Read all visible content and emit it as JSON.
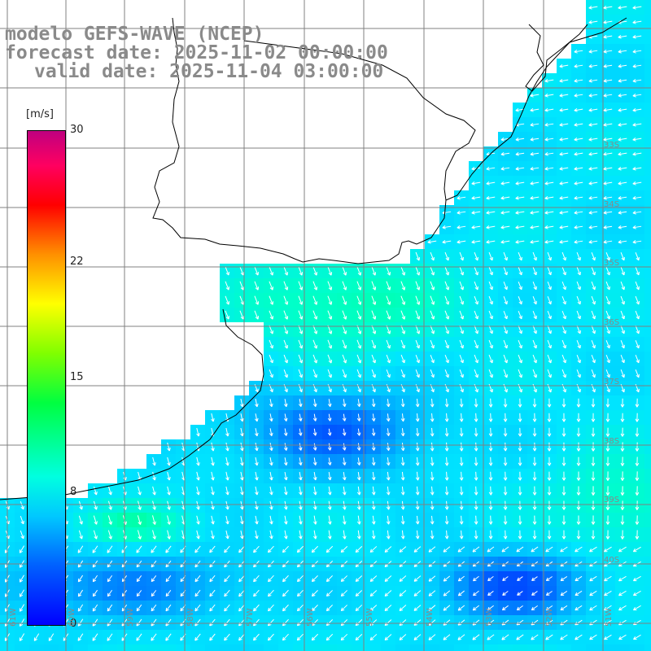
{
  "title": {
    "line1": "modelo GEFS-WAVE (NCEP)",
    "line2": "forecast date: 2025-11-02 00:00:00",
    "line3": "valid date: 2025-11-04 03:00:00"
  },
  "colorbar": {
    "unit": "[m/s]",
    "ticks": [
      {
        "label": "30",
        "value": 30
      },
      {
        "label": "22",
        "value": 22
      },
      {
        "label": "15",
        "value": 15
      },
      {
        "label": "8",
        "value": 8
      },
      {
        "label": "0",
        "value": 0
      }
    ]
  },
  "lat_labels": [
    "33S",
    "34S",
    "35S",
    "36S",
    "37S",
    "38S",
    "39S",
    "40S"
  ],
  "lon_labels": [
    "61W",
    "60W",
    "59W",
    "58W",
    "57W",
    "56W",
    "55W",
    "54W",
    "53W",
    "52W",
    "51W"
  ],
  "colors": {
    "land": "#ffffff",
    "grid": "#808080",
    "coast": "#000000",
    "arrow": "#ffffff"
  }
}
